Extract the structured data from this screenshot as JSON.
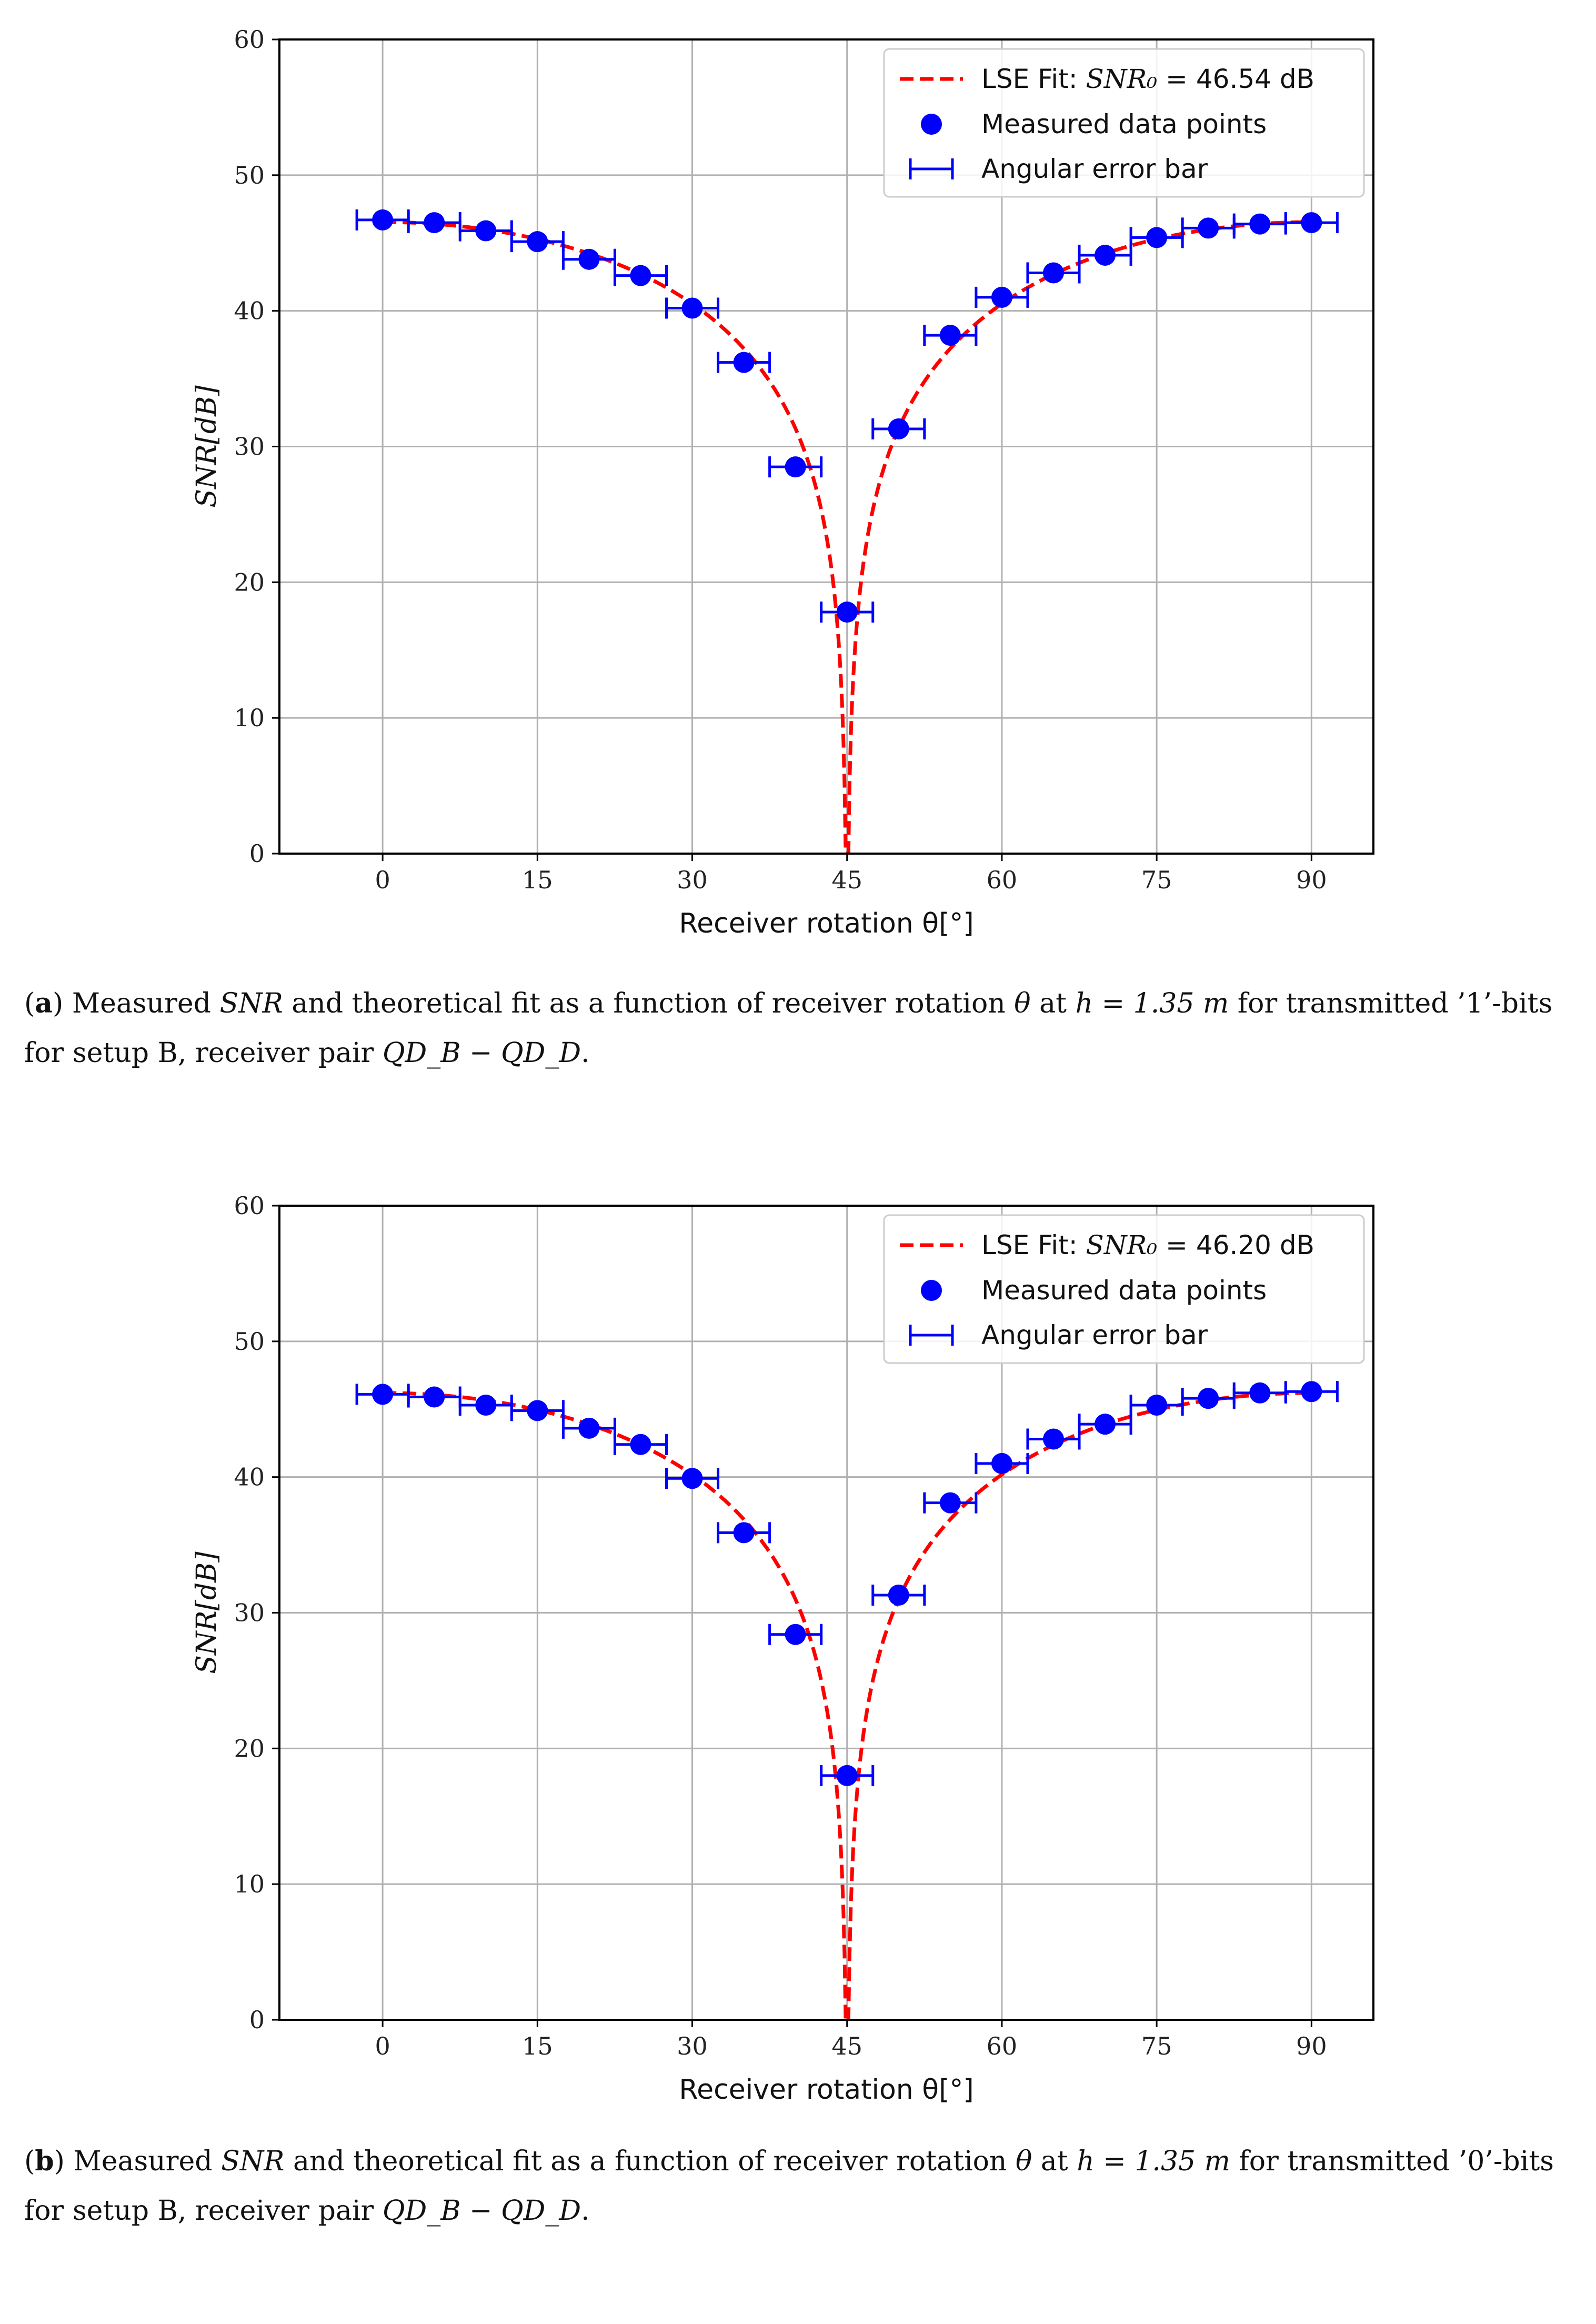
{
  "figures": [
    {
      "id": "a",
      "caption": {
        "label": "a",
        "part1": "Measured ",
        "snr": "SNR",
        "part2": " and theoretical fit as a function of receiver rotation ",
        "theta": "θ",
        "part3": " at ",
        "h_eq": "h = 1.35 m",
        "part4": " for transmitted ’1’-bits for setup B, receiver pair ",
        "pair": "QD_B − QD_D",
        "end": "."
      }
    },
    {
      "id": "b",
      "caption": {
        "label": "b",
        "part1": "Measured ",
        "snr": "SNR",
        "part2": " and theoretical fit as a function of receiver rotation ",
        "theta": "θ",
        "part3": " at ",
        "h_eq": "h = 1.35 m",
        "part4": " for transmitted ’0’-bits for setup B, receiver pair ",
        "pair": "QD_B − QD_D",
        "end": "."
      }
    }
  ],
  "chart_data": [
    {
      "type": "scatter",
      "title": "",
      "xlabel": "Receiver rotation θ[°]",
      "ylabel": "SNR[dB]",
      "xlim": [
        -10,
        96
      ],
      "ylim": [
        0,
        60
      ],
      "xticks": [
        0,
        15,
        30,
        45,
        60,
        75,
        90
      ],
      "yticks": [
        0,
        10,
        20,
        30,
        40,
        50,
        60
      ],
      "grid": true,
      "legend_position": "top-right",
      "legend": [
        {
          "label_prefix": "LSE Fit: ",
          "label_math": "SNR₀",
          "label_suffix": " = 46.54 dB",
          "style": "red-dashed-line"
        },
        {
          "label": "Measured data points",
          "style": "blue-circle"
        },
        {
          "label": "Angular error bar",
          "style": "blue-errorbar"
        }
      ],
      "fit": {
        "snr0_db": 46.54,
        "zero_at_deg": 45,
        "color": "#ff0000"
      },
      "angular_error_deg": 2.5,
      "series": [
        {
          "name": "Measured data points",
          "color": "#0000ff",
          "x": [
            0,
            5,
            10,
            15,
            20,
            25,
            30,
            35,
            40,
            45,
            50,
            55,
            60,
            65,
            70,
            75,
            80,
            85,
            90
          ],
          "y": [
            46.7,
            46.5,
            45.9,
            45.1,
            43.8,
            42.6,
            40.2,
            36.2,
            28.5,
            17.8,
            31.3,
            38.2,
            41.0,
            42.8,
            44.1,
            45.4,
            46.1,
            46.4,
            46.5
          ]
        }
      ]
    },
    {
      "type": "scatter",
      "title": "",
      "xlabel": "Receiver rotation θ[°]",
      "ylabel": "SNR[dB]",
      "xlim": [
        -10,
        96
      ],
      "ylim": [
        0,
        60
      ],
      "xticks": [
        0,
        15,
        30,
        45,
        60,
        75,
        90
      ],
      "yticks": [
        0,
        10,
        20,
        30,
        40,
        50,
        60
      ],
      "grid": true,
      "legend_position": "top-right",
      "legend": [
        {
          "label_prefix": "LSE Fit: ",
          "label_math": "SNR₀",
          "label_suffix": " = 46.20 dB",
          "style": "red-dashed-line"
        },
        {
          "label": "Measured data points",
          "style": "blue-circle"
        },
        {
          "label": "Angular error bar",
          "style": "blue-errorbar"
        }
      ],
      "fit": {
        "snr0_db": 46.2,
        "zero_at_deg": 45,
        "color": "#ff0000"
      },
      "angular_error_deg": 2.5,
      "series": [
        {
          "name": "Measured data points",
          "color": "#0000ff",
          "x": [
            0,
            5,
            10,
            15,
            20,
            25,
            30,
            35,
            40,
            45,
            50,
            55,
            60,
            65,
            70,
            75,
            80,
            85,
            90
          ],
          "y": [
            46.1,
            45.9,
            45.3,
            44.9,
            43.6,
            42.4,
            39.9,
            35.9,
            28.4,
            18.0,
            31.3,
            38.1,
            41.0,
            42.8,
            43.9,
            45.3,
            45.8,
            46.2,
            46.3
          ]
        }
      ]
    }
  ]
}
